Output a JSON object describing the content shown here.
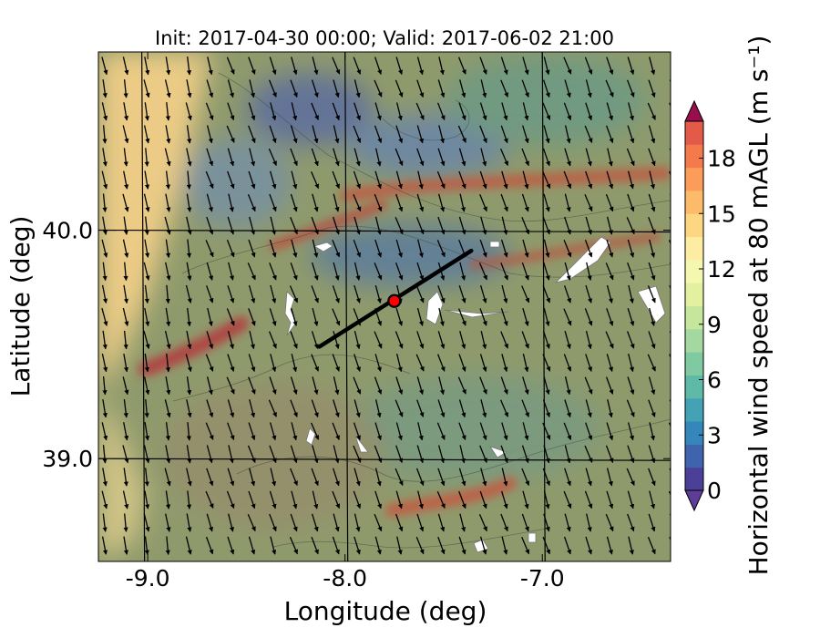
{
  "chart_data": {
    "type": "heatmap",
    "title": "Init: 2017-04-30 00:00; Valid: 2017-06-02 21:00",
    "xlabel": "Longitude (deg)",
    "ylabel": "Latitude (deg)",
    "xlim": [
      -9.25,
      -6.35
    ],
    "ylim": [
      38.55,
      40.78
    ],
    "grid": true,
    "x_ticks": [
      -9.0,
      -8.0,
      -7.0
    ],
    "x_tick_labels": [
      "-9.0",
      "-8.0",
      "-7.0"
    ],
    "y_ticks": [
      39.0,
      40.0
    ],
    "y_tick_labels": [
      "39.0",
      "40.0"
    ],
    "gridlines": {
      "lon": [
        -9.03,
        -8.0,
        -7.0
      ],
      "lat": [
        39.0,
        40.0
      ]
    },
    "colorbar": {
      "label": "Horizontal wind speed at 80 mAGL (m s⁻¹)",
      "vmin": 0,
      "vmax": 20,
      "step": 1.25,
      "extend": "both",
      "ticks": [
        0,
        3,
        6,
        9,
        12,
        15,
        18
      ],
      "tick_labels": [
        "0",
        "3",
        "6",
        "9",
        "12",
        "15",
        "18"
      ],
      "colors": [
        "#4c3f97",
        "#3f64ad",
        "#3586bb",
        "#43a2b4",
        "#5eb9a6",
        "#80caa1",
        "#a3d8a0",
        "#c5e69b",
        "#e2f0a0",
        "#f4f7b0",
        "#fdeda3",
        "#fdd682",
        "#fdbb6a",
        "#fb9c59",
        "#f47a4b",
        "#e45a49",
        "#cd3d4c",
        "#b0234f",
        "#9b0e4e"
      ],
      "under_color": "#5e3d98",
      "over_color": "#9b0e4e"
    },
    "transect": {
      "start": {
        "lon": -8.13,
        "lat": 39.49
      },
      "end": {
        "lon": -7.36,
        "lat": 39.91
      }
    },
    "marker": {
      "lon": -7.75,
      "lat": 39.69,
      "color": "#ff0000"
    },
    "wind_vectors": {
      "dominant_direction": "toward south-southeast",
      "lon_start": -9.22,
      "lon_step": 0.1067,
      "cols": 28,
      "lat_start": 40.72,
      "lat_step": 0.1,
      "rows": 22
    }
  }
}
